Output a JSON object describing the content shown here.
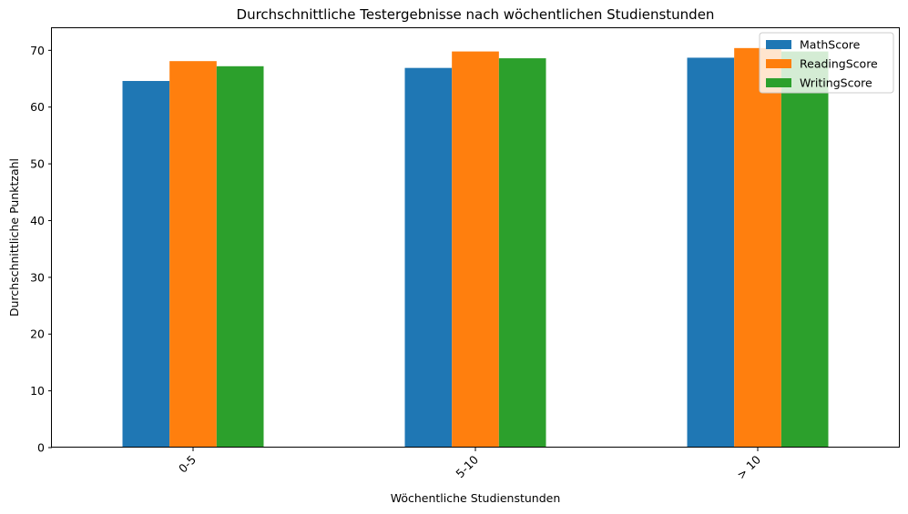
{
  "chart_data": {
    "type": "bar",
    "title": "Durchschnittliche Testergebnisse nach wöchentlichen Studienstunden",
    "xlabel": "Wöchentliche Studienstunden",
    "ylabel": "Durchschnittliche Punktzahl",
    "categories": [
      "0-5",
      "5-10",
      "> 10"
    ],
    "series": [
      {
        "name": "MathScore",
        "values": [
          64.6,
          66.9,
          68.7
        ],
        "color": "#1f77b4"
      },
      {
        "name": "ReadingScore",
        "values": [
          68.1,
          69.8,
          70.4
        ],
        "color": "#ff7f0e"
      },
      {
        "name": "WritingScore",
        "values": [
          67.2,
          68.6,
          69.8
        ],
        "color": "#2ca02c"
      }
    ],
    "ylim": [
      0,
      73.9
    ],
    "yticks": [
      0,
      10,
      20,
      30,
      40,
      50,
      60,
      70
    ],
    "xtick_rotation": 45,
    "grid": false,
    "legend_position": "top-right"
  }
}
